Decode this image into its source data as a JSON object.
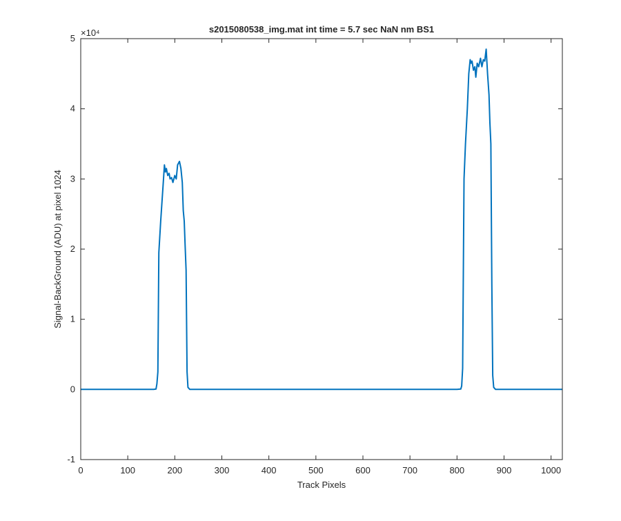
{
  "chart_data": {
    "type": "line",
    "title": "s2015080538_img.mat int time = 5.7 sec  NaN nm BS1",
    "xlabel": "Track Pixels",
    "ylabel": "Signal-BackGround (ADU) at pixel 1024",
    "xlim": [
      0,
      1024
    ],
    "ylim": [
      -1,
      5
    ],
    "y_scale_multiplier": "×10⁴",
    "x_ticks": [
      0,
      100,
      200,
      300,
      400,
      500,
      600,
      700,
      800,
      900,
      1000
    ],
    "x_tick_labels": [
      "0",
      "100",
      "200",
      "300",
      "400",
      "500",
      "600",
      "700",
      "800",
      "900",
      "1000"
    ],
    "y_ticks": [
      -1,
      0,
      1,
      2,
      3,
      4,
      5
    ],
    "y_tick_labels": [
      "-1",
      "0",
      "1",
      "2",
      "3",
      "4",
      "5"
    ],
    "grid": false,
    "line_color": "#0072BD",
    "series": [
      {
        "x": [
          0,
          100,
          155,
          160,
          162,
          164,
          166,
          170,
          175,
          178,
          180,
          182,
          185,
          188,
          190,
          193,
          196,
          200,
          203,
          206,
          210,
          213,
          216,
          218,
          220,
          222,
          224,
          226,
          228,
          232,
          300,
          400,
          500,
          600,
          700,
          800,
          808,
          810,
          812,
          815,
          818,
          822,
          825,
          828,
          830,
          832,
          835,
          838,
          840,
          843,
          846,
          850,
          853,
          856,
          859,
          862,
          865,
          868,
          870,
          872,
          874,
          876,
          878,
          882,
          950,
          1024
        ],
        "y": [
          0,
          0,
          0,
          0.005,
          0.08,
          0.25,
          1.95,
          2.4,
          2.9,
          3.2,
          3.1,
          3.15,
          3.05,
          3.08,
          3.0,
          3.02,
          2.95,
          3.05,
          3.0,
          3.2,
          3.25,
          3.15,
          2.95,
          2.55,
          2.4,
          2.05,
          1.7,
          0.25,
          0.03,
          0.0,
          0.0,
          0.0,
          0.0,
          0.0,
          0.0,
          0.0,
          0.005,
          0.05,
          0.3,
          3.0,
          3.5,
          4.0,
          4.5,
          4.7,
          4.65,
          4.68,
          4.55,
          4.6,
          4.45,
          4.65,
          4.6,
          4.72,
          4.6,
          4.7,
          4.68,
          4.85,
          4.5,
          4.2,
          3.8,
          3.5,
          1.5,
          0.2,
          0.03,
          0.0,
          0.0,
          0.0
        ]
      }
    ]
  }
}
